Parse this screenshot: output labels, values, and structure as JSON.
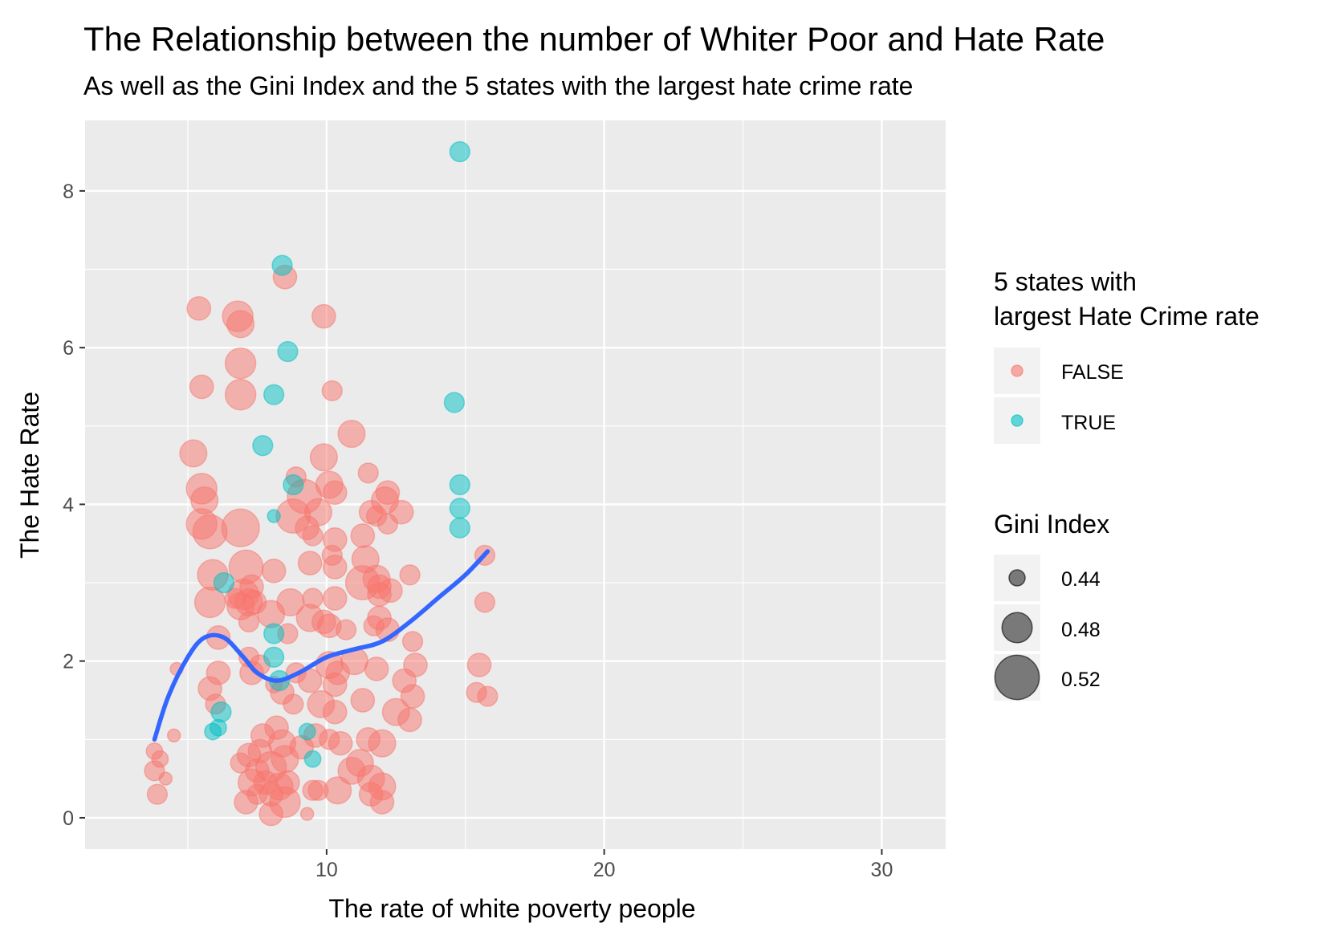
{
  "chart_data": {
    "type": "scatter",
    "title": "The Relationship between the number of Whiter Poor and Hate Rate",
    "subtitle": "As well as the Gini Index and the 5 states with the largest hate crime rate",
    "xlabel": "The rate of white poverty people",
    "ylabel": "The Hate Rate",
    "xlim": [
      1.3,
      32.3
    ],
    "ylim": [
      -0.4,
      8.9
    ],
    "x_ticks": [
      10,
      20,
      30
    ],
    "y_ticks": [
      0,
      2,
      4,
      6,
      8
    ],
    "grid": true,
    "legend_position": "right",
    "color_legend": {
      "title_lines": [
        "5 states with",
        "largest Hate Crime rate"
      ],
      "entries": [
        {
          "label": "FALSE",
          "color": "#F8766D"
        },
        {
          "label": "TRUE",
          "color": "#00BFC4"
        }
      ]
    },
    "size_legend": {
      "title": "Gini Index",
      "entries": [
        {
          "label": "0.44",
          "value": 0.44
        },
        {
          "label": "0.48",
          "value": 0.48
        },
        {
          "label": "0.52",
          "value": 0.52
        }
      ]
    },
    "colors": {
      "panel": "#EBEBEB",
      "grid": "#FFFFFF",
      "smooth": "#3366FF",
      "false": "#F8766D",
      "true": "#00BFC4"
    },
    "series": [
      {
        "name": "FALSE",
        "points": [
          [
            5.4,
            6.5,
            0.47
          ],
          [
            6.8,
            6.4,
            0.49
          ],
          [
            6.9,
            6.3,
            0.48
          ],
          [
            8.5,
            6.9,
            0.47
          ],
          [
            9.9,
            6.4,
            0.47
          ],
          [
            5.5,
            5.5,
            0.47
          ],
          [
            6.9,
            5.8,
            0.49
          ],
          [
            6.9,
            5.4,
            0.49
          ],
          [
            10.2,
            5.45,
            0.46
          ],
          [
            10.9,
            4.9,
            0.48
          ],
          [
            5.2,
            4.65,
            0.48
          ],
          [
            5.5,
            4.2,
            0.49
          ],
          [
            5.6,
            4.05,
            0.48
          ],
          [
            6.9,
            3.7,
            0.51
          ],
          [
            5.5,
            3.75,
            0.49
          ],
          [
            5.8,
            3.65,
            0.5
          ],
          [
            8.9,
            4.35,
            0.46
          ],
          [
            9.2,
            4.1,
            0.5
          ],
          [
            9.9,
            4.6,
            0.48
          ],
          [
            10.1,
            4.25,
            0.48
          ],
          [
            10.3,
            4.15,
            0.47
          ],
          [
            11.5,
            4.4,
            0.46
          ],
          [
            12.2,
            4.15,
            0.47
          ],
          [
            12.1,
            4.05,
            0.48
          ],
          [
            11.6,
            3.9,
            0.47
          ],
          [
            11.8,
            3.85,
            0.46
          ],
          [
            12.2,
            3.75,
            0.46
          ],
          [
            12.7,
            3.9,
            0.47
          ],
          [
            8.8,
            3.85,
            0.5
          ],
          [
            9.7,
            3.9,
            0.48
          ],
          [
            9.3,
            3.7,
            0.47
          ],
          [
            9.5,
            3.6,
            0.46
          ],
          [
            10.3,
            3.55,
            0.47
          ],
          [
            11.3,
            3.6,
            0.47
          ],
          [
            10.2,
            3.35,
            0.46
          ],
          [
            11.4,
            3.3,
            0.48
          ],
          [
            9.4,
            3.25,
            0.47
          ],
          [
            10.3,
            3.2,
            0.47
          ],
          [
            15.7,
            3.35,
            0.46
          ],
          [
            5.9,
            3.1,
            0.49
          ],
          [
            7.1,
            3.2,
            0.5
          ],
          [
            8.1,
            3.15,
            0.47
          ],
          [
            7.3,
            2.95,
            0.47
          ],
          [
            7.0,
            2.85,
            0.49
          ],
          [
            7.2,
            2.75,
            0.48
          ],
          [
            6.9,
            2.7,
            0.48
          ],
          [
            7.4,
            2.75,
            0.47
          ],
          [
            6.7,
            2.8,
            0.46
          ],
          [
            5.8,
            2.75,
            0.49
          ],
          [
            8.7,
            2.75,
            0.48
          ],
          [
            9.5,
            2.8,
            0.46
          ],
          [
            10.3,
            2.8,
            0.47
          ],
          [
            11.3,
            3.0,
            0.5
          ],
          [
            11.8,
            3.05,
            0.48
          ],
          [
            11.9,
            2.95,
            0.47
          ],
          [
            12.3,
            2.9,
            0.47
          ],
          [
            13.0,
            3.1,
            0.46
          ],
          [
            11.9,
            2.85,
            0.47
          ],
          [
            15.7,
            2.75,
            0.46
          ],
          [
            6.1,
            2.3,
            0.47
          ],
          [
            7.2,
            2.5,
            0.46
          ],
          [
            8.0,
            2.6,
            0.48
          ],
          [
            8.6,
            2.35,
            0.46
          ],
          [
            9.4,
            2.55,
            0.48
          ],
          [
            9.9,
            2.5,
            0.47
          ],
          [
            10.1,
            2.45,
            0.47
          ],
          [
            10.7,
            2.4,
            0.46
          ],
          [
            11.7,
            2.45,
            0.46
          ],
          [
            11.9,
            2.55,
            0.47
          ],
          [
            12.2,
            2.4,
            0.47
          ],
          [
            13.1,
            2.25,
            0.46
          ],
          [
            15.5,
            1.95,
            0.47
          ],
          [
            15.4,
            1.6,
            0.46
          ],
          [
            15.8,
            1.55,
            0.46
          ],
          [
            4.6,
            1.9,
            0.44
          ],
          [
            6.1,
            1.85,
            0.47
          ],
          [
            5.8,
            1.65,
            0.47
          ],
          [
            6.0,
            1.45,
            0.46
          ],
          [
            7.2,
            2.05,
            0.46
          ],
          [
            7.3,
            1.85,
            0.47
          ],
          [
            7.6,
            1.95,
            0.46
          ],
          [
            8.1,
            1.7,
            0.45
          ],
          [
            8.4,
            1.6,
            0.47
          ],
          [
            8.9,
            1.85,
            0.46
          ],
          [
            9.4,
            1.75,
            0.47
          ],
          [
            10.1,
            1.95,
            0.48
          ],
          [
            10.4,
            1.85,
            0.47
          ],
          [
            10.3,
            1.7,
            0.47
          ],
          [
            11.0,
            2.0,
            0.48
          ],
          [
            11.8,
            1.9,
            0.47
          ],
          [
            12.8,
            1.75,
            0.47
          ],
          [
            13.2,
            1.95,
            0.47
          ],
          [
            11.3,
            1.5,
            0.47
          ],
          [
            13.1,
            1.55,
            0.47
          ],
          [
            9.8,
            1.45,
            0.48
          ],
          [
            10.3,
            1.35,
            0.47
          ],
          [
            8.8,
            1.45,
            0.46
          ],
          [
            12.5,
            1.35,
            0.48
          ],
          [
            13.0,
            1.25,
            0.47
          ],
          [
            4.5,
            1.05,
            0.44
          ],
          [
            3.8,
            0.85,
            0.45
          ],
          [
            4.0,
            0.75,
            0.45
          ],
          [
            3.8,
            0.6,
            0.46
          ],
          [
            4.2,
            0.5,
            0.44
          ],
          [
            3.9,
            0.3,
            0.46
          ],
          [
            7.7,
            1.05,
            0.47
          ],
          [
            8.2,
            1.15,
            0.47
          ],
          [
            8.4,
            0.95,
            0.48
          ],
          [
            7.6,
            0.85,
            0.47
          ],
          [
            7.2,
            0.8,
            0.47
          ],
          [
            6.9,
            0.7,
            0.46
          ],
          [
            7.5,
            0.6,
            0.47
          ],
          [
            8.0,
            0.65,
            0.49
          ],
          [
            8.5,
            0.75,
            0.48
          ],
          [
            9.1,
            0.9,
            0.47
          ],
          [
            9.6,
            1.05,
            0.47
          ],
          [
            10.1,
            1.0,
            0.46
          ],
          [
            10.5,
            0.95,
            0.47
          ],
          [
            11.5,
            1.0,
            0.47
          ],
          [
            12.0,
            0.95,
            0.48
          ],
          [
            7.3,
            0.45,
            0.48
          ],
          [
            7.8,
            0.45,
            0.47
          ],
          [
            8.3,
            0.4,
            0.48
          ],
          [
            7.5,
            0.3,
            0.46
          ],
          [
            8.0,
            0.3,
            0.47
          ],
          [
            8.6,
            0.45,
            0.47
          ],
          [
            9.5,
            0.35,
            0.46
          ],
          [
            10.4,
            0.35,
            0.48
          ],
          [
            11.2,
            0.7,
            0.48
          ],
          [
            11.6,
            0.5,
            0.48
          ],
          [
            12.0,
            0.4,
            0.48
          ],
          [
            11.6,
            0.3,
            0.47
          ],
          [
            12.0,
            0.2,
            0.47
          ],
          [
            9.3,
            0.05,
            0.44
          ],
          [
            8.0,
            0.05,
            0.47
          ],
          [
            9.7,
            0.35,
            0.46
          ],
          [
            10.9,
            0.6,
            0.48
          ],
          [
            7.1,
            0.2,
            0.47
          ],
          [
            8.5,
            0.2,
            0.49
          ]
        ]
      },
      {
        "name": "TRUE",
        "points": [
          [
            14.8,
            8.5,
            0.46
          ],
          [
            8.4,
            7.05,
            0.46
          ],
          [
            8.6,
            5.95,
            0.46
          ],
          [
            8.1,
            5.4,
            0.46
          ],
          [
            14.6,
            5.3,
            0.46
          ],
          [
            7.7,
            4.75,
            0.46
          ],
          [
            8.8,
            4.25,
            0.46
          ],
          [
            14.8,
            4.25,
            0.46
          ],
          [
            14.8,
            3.95,
            0.46
          ],
          [
            14.8,
            3.7,
            0.46
          ],
          [
            8.1,
            3.85,
            0.44
          ],
          [
            6.3,
            3.0,
            0.46
          ],
          [
            6.2,
            1.35,
            0.46
          ],
          [
            6.1,
            1.15,
            0.45
          ],
          [
            5.9,
            1.1,
            0.45
          ],
          [
            8.1,
            2.35,
            0.46
          ],
          [
            8.1,
            2.05,
            0.46
          ],
          [
            8.3,
            1.75,
            0.46
          ],
          [
            9.3,
            1.1,
            0.45
          ],
          [
            9.5,
            0.75,
            0.45
          ]
        ]
      }
    ],
    "smooth_line": {
      "name": "smooth",
      "points": [
        [
          3.8,
          1.0
        ],
        [
          4.3,
          1.55
        ],
        [
          5.0,
          2.05
        ],
        [
          5.6,
          2.3
        ],
        [
          6.3,
          2.3
        ],
        [
          7.0,
          2.05
        ],
        [
          7.5,
          1.85
        ],
        [
          8.2,
          1.75
        ],
        [
          9.0,
          1.85
        ],
        [
          10.0,
          2.05
        ],
        [
          11.0,
          2.15
        ],
        [
          12.0,
          2.25
        ],
        [
          13.0,
          2.5
        ],
        [
          14.0,
          2.8
        ],
        [
          15.0,
          3.1
        ],
        [
          15.8,
          3.4
        ]
      ]
    }
  }
}
